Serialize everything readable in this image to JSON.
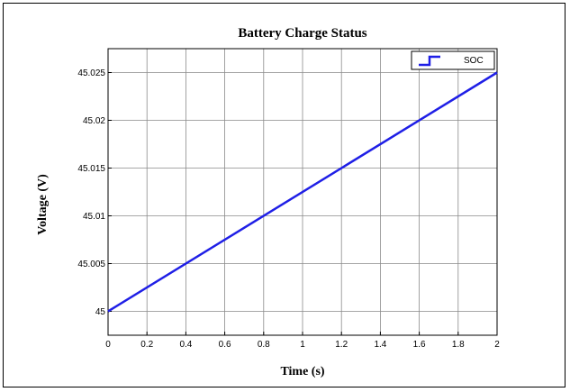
{
  "chart_data": {
    "type": "line",
    "title": "Battery Charge Status",
    "xlabel": "Time (s)",
    "ylabel": "Voltage (V)",
    "xlim": [
      0,
      2
    ],
    "ylim": [
      44.9975,
      45.0275
    ],
    "xticks": [
      0,
      0.2,
      0.4,
      0.6,
      0.8,
      1,
      1.2,
      1.4,
      1.6,
      1.8,
      2
    ],
    "xtick_labels": [
      "0",
      "0.2",
      "0.4",
      "0.6",
      "0.8",
      "1",
      "1.2",
      "1.4",
      "1.6",
      "1.8",
      "2"
    ],
    "yticks": [
      45,
      45.005,
      45.01,
      45.015,
      45.02,
      45.025
    ],
    "ytick_labels": [
      "45",
      "45.005",
      "45.01",
      "45.015",
      "45.02",
      "45.025"
    ],
    "grid": true,
    "legend_position": "top-right",
    "series": [
      {
        "name": "SOC",
        "color": "#1f1fe6",
        "x": [
          0,
          2
        ],
        "y": [
          45,
          45.025
        ]
      }
    ]
  }
}
